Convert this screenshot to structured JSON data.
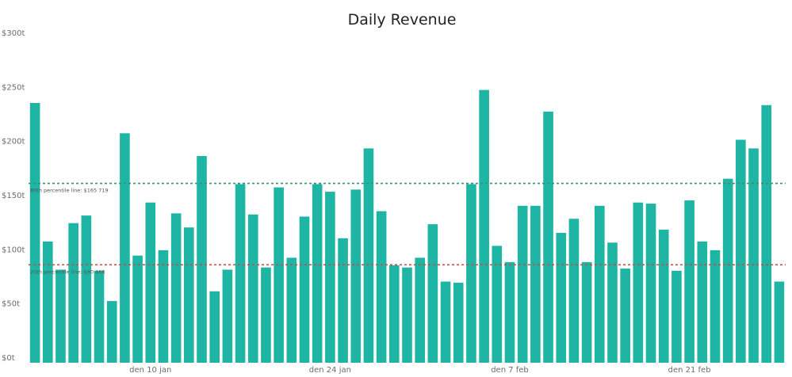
{
  "chart_data": {
    "type": "bar",
    "title": "Daily Revenue",
    "xlabel": "",
    "ylabel": "",
    "ylim": [
      0,
      300000
    ],
    "y_ticks": [
      {
        "value": 0,
        "label": "$0t"
      },
      {
        "value": 50000,
        "label": "$50t"
      },
      {
        "value": 100000,
        "label": "$100t"
      },
      {
        "value": 150000,
        "label": "$150t"
      },
      {
        "value": 200000,
        "label": "$200t"
      },
      {
        "value": 250000,
        "label": "$250t"
      },
      {
        "value": 300000,
        "label": "$300t"
      }
    ],
    "x_ticks": [
      {
        "index": 9,
        "label": "den 10 jan"
      },
      {
        "index": 23,
        "label": "den 24 jan"
      },
      {
        "index": 37,
        "label": "den 7 feb"
      },
      {
        "index": 51,
        "label": "den 21 feb"
      }
    ],
    "bar_color": "#1fb5a4",
    "values": [
      240000,
      112000,
      86000,
      129000,
      136000,
      85000,
      57000,
      212000,
      99000,
      148000,
      104000,
      138000,
      125000,
      191000,
      66000,
      86000,
      165000,
      137000,
      88000,
      162000,
      97000,
      135000,
      165000,
      158000,
      115000,
      160000,
      198000,
      140000,
      90000,
      88000,
      97000,
      128000,
      75000,
      74000,
      165000,
      252000,
      108000,
      93000,
      145000,
      145000,
      232000,
      120000,
      133000,
      93000,
      145000,
      111000,
      87000,
      148000,
      147000,
      123000,
      85000,
      150000,
      112000,
      104000,
      170000,
      206000,
      198000,
      238000,
      75000
    ],
    "reference_lines": [
      {
        "label": "80th percentile line: $165 719",
        "value": 165719,
        "color": "#3d8f6b"
      },
      {
        "label": "20th percentile line: $90 468",
        "value": 90468,
        "color": "#c0504d"
      }
    ]
  }
}
